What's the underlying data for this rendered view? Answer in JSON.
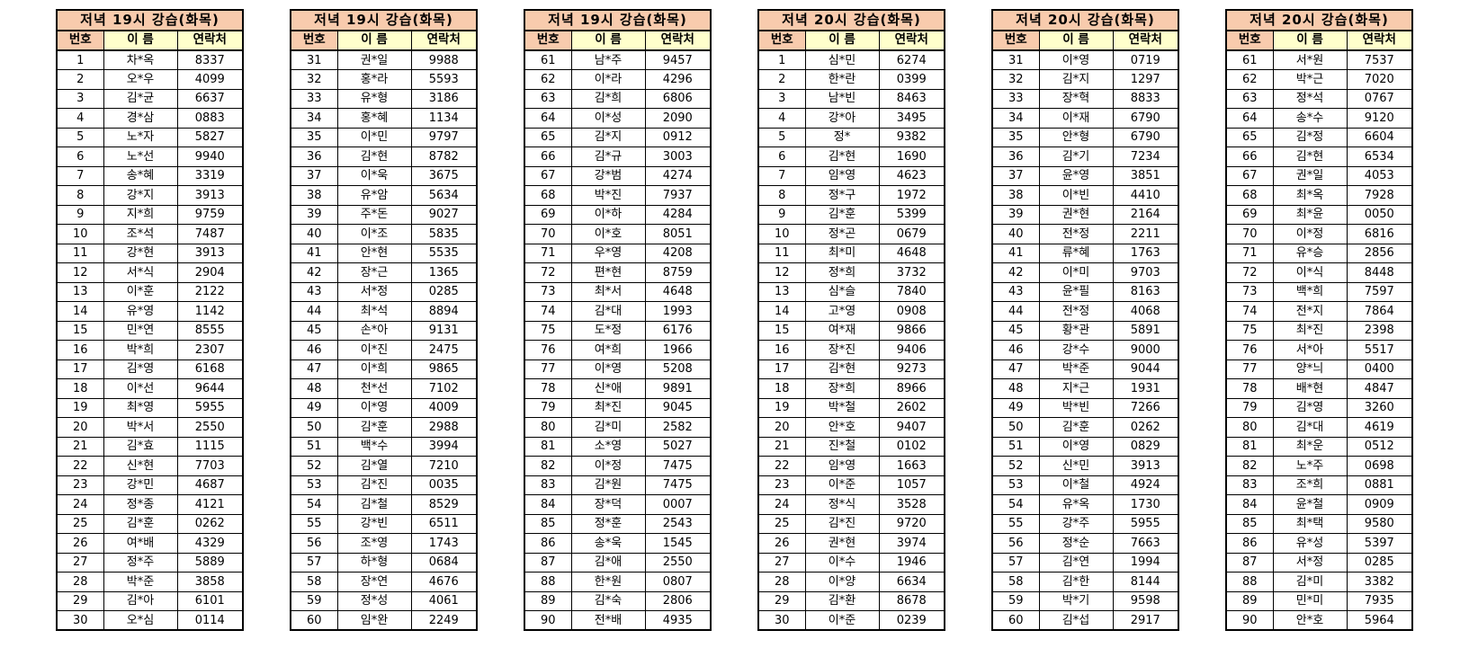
{
  "columns": {
    "no": "번호",
    "name": "이 름",
    "contact": "연락처"
  },
  "colors": {
    "title_bg": "#F8CBAD",
    "no_header_bg": "#F8CBAD",
    "header_bg": "#FFFFCC",
    "border": "#000000",
    "text": "#000000",
    "page_bg": "#FFFFFF"
  },
  "tables": [
    {
      "title": "저녁 19시 강습(화목)",
      "rows": [
        [
          "1",
          "차*옥",
          "8337"
        ],
        [
          "2",
          "오*우",
          "4099"
        ],
        [
          "3",
          "김*균",
          "6637"
        ],
        [
          "4",
          "경*삼",
          "0883"
        ],
        [
          "5",
          "노*자",
          "5827"
        ],
        [
          "6",
          "노*선",
          "9940"
        ],
        [
          "7",
          "송*혜",
          "3319"
        ],
        [
          "8",
          "강*지",
          "3913"
        ],
        [
          "9",
          "지*희",
          "9759"
        ],
        [
          "10",
          "조*석",
          "7487"
        ],
        [
          "11",
          "강*현",
          "3913"
        ],
        [
          "12",
          "서*식",
          "2904"
        ],
        [
          "13",
          "이*훈",
          "2122"
        ],
        [
          "14",
          "유*영",
          "1142"
        ],
        [
          "15",
          "민*연",
          "8555"
        ],
        [
          "16",
          "박*희",
          "2307"
        ],
        [
          "17",
          "김*영",
          "6168"
        ],
        [
          "18",
          "이*선",
          "9644"
        ],
        [
          "19",
          "최*영",
          "5955"
        ],
        [
          "20",
          "박*서",
          "2550"
        ],
        [
          "21",
          "김*효",
          "1115"
        ],
        [
          "22",
          "신*현",
          "7703"
        ],
        [
          "23",
          "강*민",
          "4687"
        ],
        [
          "24",
          "정*종",
          "4121"
        ],
        [
          "25",
          "김*훈",
          "0262"
        ],
        [
          "26",
          "여*배",
          "4329"
        ],
        [
          "27",
          "정*주",
          "5889"
        ],
        [
          "28",
          "박*준",
          "3858"
        ],
        [
          "29",
          "김*아",
          "6101"
        ],
        [
          "30",
          "오*심",
          "0114"
        ]
      ]
    },
    {
      "title": "저녁 19시 강습(화목)",
      "rows": [
        [
          "31",
          "권*일",
          "9988"
        ],
        [
          "32",
          "홍*라",
          "5593"
        ],
        [
          "33",
          "유*형",
          "3186"
        ],
        [
          "34",
          "홍*혜",
          "1134"
        ],
        [
          "35",
          "이*민",
          "9797"
        ],
        [
          "36",
          "김*현",
          "8782"
        ],
        [
          "37",
          "이*욱",
          "3675"
        ],
        [
          "38",
          "유*암",
          "5634"
        ],
        [
          "39",
          "주*돈",
          "9027"
        ],
        [
          "40",
          "이*조",
          "5835"
        ],
        [
          "41",
          "안*현",
          "5535"
        ],
        [
          "42",
          "장*근",
          "1365"
        ],
        [
          "43",
          "서*정",
          "0285"
        ],
        [
          "44",
          "최*석",
          "8894"
        ],
        [
          "45",
          "손*아",
          "9131"
        ],
        [
          "46",
          "이*진",
          "2475"
        ],
        [
          "47",
          "이*희",
          "9865"
        ],
        [
          "48",
          "천*선",
          "7102"
        ],
        [
          "49",
          "이*영",
          "4009"
        ],
        [
          "50",
          "김*훈",
          "2988"
        ],
        [
          "51",
          "백*수",
          "3994"
        ],
        [
          "52",
          "김*열",
          "7210"
        ],
        [
          "53",
          "김*진",
          "0035"
        ],
        [
          "54",
          "김*철",
          "8529"
        ],
        [
          "55",
          "강*빈",
          "6511"
        ],
        [
          "56",
          "조*영",
          "1743"
        ],
        [
          "57",
          "하*형",
          "0684"
        ],
        [
          "58",
          "장*연",
          "4676"
        ],
        [
          "59",
          "정*성",
          "4061"
        ],
        [
          "60",
          "임*완",
          "2249"
        ]
      ]
    },
    {
      "title": "저녁 19시 강습(화목)",
      "rows": [
        [
          "61",
          "남*주",
          "9457"
        ],
        [
          "62",
          "이*라",
          "4296"
        ],
        [
          "63",
          "김*희",
          "6806"
        ],
        [
          "64",
          "이*성",
          "2090"
        ],
        [
          "65",
          "김*지",
          "0912"
        ],
        [
          "66",
          "김*규",
          "3003"
        ],
        [
          "67",
          "강*범",
          "4274"
        ],
        [
          "68",
          "박*진",
          "7937"
        ],
        [
          "69",
          "이*하",
          "4284"
        ],
        [
          "70",
          "이*호",
          "8051"
        ],
        [
          "71",
          "우*영",
          "4208"
        ],
        [
          "72",
          "편*현",
          "8759"
        ],
        [
          "73",
          "최*서",
          "4648"
        ],
        [
          "74",
          "김*대",
          "1993"
        ],
        [
          "75",
          "도*정",
          "6176"
        ],
        [
          "76",
          "여*희",
          "1966"
        ],
        [
          "77",
          "이*영",
          "5208"
        ],
        [
          "78",
          "신*애",
          "9891"
        ],
        [
          "79",
          "최*진",
          "9045"
        ],
        [
          "80",
          "김*미",
          "2582"
        ],
        [
          "81",
          "소*영",
          "5027"
        ],
        [
          "82",
          "이*정",
          "7475"
        ],
        [
          "83",
          "김*원",
          "7475"
        ],
        [
          "84",
          "장*덕",
          "0007"
        ],
        [
          "85",
          "정*훈",
          "2543"
        ],
        [
          "86",
          "송*욱",
          "1545"
        ],
        [
          "87",
          "김*애",
          "2550"
        ],
        [
          "88",
          "한*원",
          "0807"
        ],
        [
          "89",
          "김*숙",
          "2806"
        ],
        [
          "90",
          "전*배",
          "4935"
        ]
      ]
    },
    {
      "title": "저녁 20시 강습(화목)",
      "rows": [
        [
          "1",
          "심*민",
          "6274"
        ],
        [
          "2",
          "한*란",
          "0399"
        ],
        [
          "3",
          "남*빈",
          "8463"
        ],
        [
          "4",
          "강*아",
          "3495"
        ],
        [
          "5",
          "정*",
          "9382"
        ],
        [
          "6",
          "김*현",
          "1690"
        ],
        [
          "7",
          "임*영",
          "4623"
        ],
        [
          "8",
          "정*구",
          "1972"
        ],
        [
          "9",
          "김*훈",
          "5399"
        ],
        [
          "10",
          "정*곤",
          "0679"
        ],
        [
          "11",
          "최*미",
          "4648"
        ],
        [
          "12",
          "정*희",
          "3732"
        ],
        [
          "13",
          "심*슬",
          "7840"
        ],
        [
          "14",
          "고*영",
          "0908"
        ],
        [
          "15",
          "여*재",
          "9866"
        ],
        [
          "16",
          "장*진",
          "9406"
        ],
        [
          "17",
          "김*현",
          "9273"
        ],
        [
          "18",
          "장*희",
          "8966"
        ],
        [
          "19",
          "박*철",
          "2602"
        ],
        [
          "20",
          "안*호",
          "9407"
        ],
        [
          "21",
          "진*철",
          "0102"
        ],
        [
          "22",
          "임*영",
          "1663"
        ],
        [
          "23",
          "이*준",
          "1057"
        ],
        [
          "24",
          "정*식",
          "3528"
        ],
        [
          "25",
          "김*진",
          "9720"
        ],
        [
          "26",
          "권*현",
          "3974"
        ],
        [
          "27",
          "이*수",
          "1946"
        ],
        [
          "28",
          "이*양",
          "6634"
        ],
        [
          "29",
          "김*환",
          "8678"
        ],
        [
          "30",
          "이*준",
          "0239"
        ]
      ]
    },
    {
      "title": "저녁 20시 강습(화목)",
      "rows": [
        [
          "31",
          "이*영",
          "0719"
        ],
        [
          "32",
          "김*지",
          "1297"
        ],
        [
          "33",
          "장*혁",
          "8833"
        ],
        [
          "34",
          "이*재",
          "6790"
        ],
        [
          "35",
          "안*형",
          "6790"
        ],
        [
          "36",
          "김*기",
          "7234"
        ],
        [
          "37",
          "윤*영",
          "3851"
        ],
        [
          "38",
          "이*빈",
          "4410"
        ],
        [
          "39",
          "권*현",
          "2164"
        ],
        [
          "40",
          "전*정",
          "2211"
        ],
        [
          "41",
          "류*혜",
          "1763"
        ],
        [
          "42",
          "이*미",
          "9703"
        ],
        [
          "43",
          "윤*필",
          "8163"
        ],
        [
          "44",
          "전*정",
          "4068"
        ],
        [
          "45",
          "황*관",
          "5891"
        ],
        [
          "46",
          "강*수",
          "9000"
        ],
        [
          "47",
          "박*준",
          "9044"
        ],
        [
          "48",
          "지*근",
          "1931"
        ],
        [
          "49",
          "박*빈",
          "7266"
        ],
        [
          "50",
          "김*훈",
          "0262"
        ],
        [
          "51",
          "이*영",
          "0829"
        ],
        [
          "52",
          "신*민",
          "3913"
        ],
        [
          "53",
          "이*철",
          "4924"
        ],
        [
          "54",
          "유*옥",
          "1730"
        ],
        [
          "55",
          "강*주",
          "5955"
        ],
        [
          "56",
          "정*순",
          "7663"
        ],
        [
          "57",
          "김*연",
          "1994"
        ],
        [
          "58",
          "김*한",
          "8144"
        ],
        [
          "59",
          "박*기",
          "9598"
        ],
        [
          "60",
          "김*섭",
          "2917"
        ]
      ]
    },
    {
      "title": "저녁 20시 강습(화목)",
      "rows": [
        [
          "61",
          "서*원",
          "7537"
        ],
        [
          "62",
          "박*근",
          "7020"
        ],
        [
          "63",
          "정*석",
          "0767"
        ],
        [
          "64",
          "송*수",
          "9120"
        ],
        [
          "65",
          "김*정",
          "6604"
        ],
        [
          "66",
          "김*현",
          "6534"
        ],
        [
          "67",
          "권*일",
          "4053"
        ],
        [
          "68",
          "최*옥",
          "7928"
        ],
        [
          "69",
          "최*윤",
          "0050"
        ],
        [
          "70",
          "이*정",
          "6816"
        ],
        [
          "71",
          "유*승",
          "2856"
        ],
        [
          "72",
          "이*식",
          "8448"
        ],
        [
          "73",
          "백*희",
          "7597"
        ],
        [
          "74",
          "전*지",
          "7864"
        ],
        [
          "75",
          "최*진",
          "2398"
        ],
        [
          "76",
          "서*아",
          "5517"
        ],
        [
          "77",
          "양*늬",
          "0400"
        ],
        [
          "78",
          "배*현",
          "4847"
        ],
        [
          "79",
          "김*영",
          "3260"
        ],
        [
          "80",
          "김*대",
          "4619"
        ],
        [
          "81",
          "최*운",
          "0512"
        ],
        [
          "82",
          "노*주",
          "0698"
        ],
        [
          "83",
          "조*희",
          "0881"
        ],
        [
          "84",
          "윤*철",
          "0909"
        ],
        [
          "85",
          "최*택",
          "9580"
        ],
        [
          "86",
          "유*성",
          "5397"
        ],
        [
          "87",
          "서*정",
          "0285"
        ],
        [
          "88",
          "김*미",
          "3382"
        ],
        [
          "89",
          "민*미",
          "7935"
        ],
        [
          "90",
          "안*호",
          "5964"
        ]
      ]
    }
  ]
}
